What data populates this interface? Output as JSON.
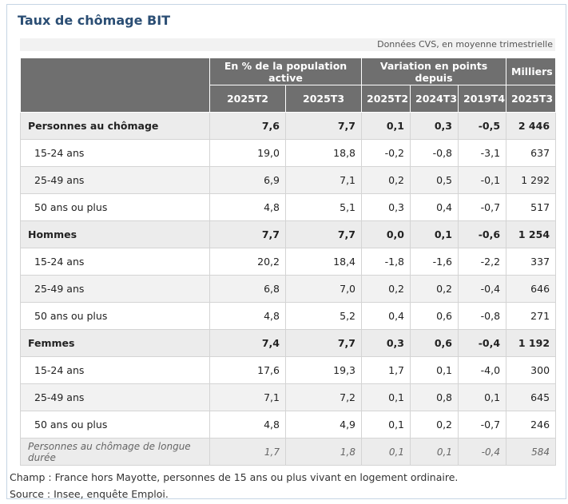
{
  "title": "Taux de chômage BIT",
  "subtitle": "Données CVS, en moyenne trimestrielle",
  "table": {
    "group_headers": [
      "En % de la population active",
      "Variation en points depuis",
      "Milliers"
    ],
    "sub_headers": [
      "2025T2",
      "2025T3",
      "2025T2",
      "2024T3",
      "2019T4",
      "2025T3"
    ],
    "rows": [
      {
        "type": "group",
        "label": "Personnes au chômage",
        "values": [
          "7,6",
          "7,7",
          "0,1",
          "0,3",
          "-0,5",
          "2 446"
        ]
      },
      {
        "type": "sub",
        "label": "15-24 ans",
        "values": [
          "19,0",
          "18,8",
          "-0,2",
          "-0,8",
          "-3,1",
          "637"
        ]
      },
      {
        "type": "sub alt",
        "label": "25-49 ans",
        "values": [
          "6,9",
          "7,1",
          "0,2",
          "0,5",
          "-0,1",
          "1 292"
        ]
      },
      {
        "type": "sub",
        "label": "50 ans ou plus",
        "values": [
          "4,8",
          "5,1",
          "0,3",
          "0,4",
          "-0,7",
          "517"
        ]
      },
      {
        "type": "group",
        "label": "Hommes",
        "values": [
          "7,7",
          "7,7",
          "0,0",
          "0,1",
          "-0,6",
          "1 254"
        ]
      },
      {
        "type": "sub",
        "label": "15-24 ans",
        "values": [
          "20,2",
          "18,4",
          "-1,8",
          "-1,6",
          "-2,2",
          "337"
        ]
      },
      {
        "type": "sub alt",
        "label": "25-49 ans",
        "values": [
          "6,8",
          "7,0",
          "0,2",
          "0,2",
          "-0,4",
          "646"
        ]
      },
      {
        "type": "sub",
        "label": "50 ans ou plus",
        "values": [
          "4,8",
          "5,2",
          "0,4",
          "0,6",
          "-0,8",
          "271"
        ]
      },
      {
        "type": "group",
        "label": "Femmes",
        "values": [
          "7,4",
          "7,7",
          "0,3",
          "0,6",
          "-0,4",
          "1 192"
        ]
      },
      {
        "type": "sub",
        "label": "15-24 ans",
        "values": [
          "17,6",
          "19,3",
          "1,7",
          "0,1",
          "-4,0",
          "300"
        ]
      },
      {
        "type": "sub alt",
        "label": "25-49 ans",
        "values": [
          "7,1",
          "7,2",
          "0,1",
          "0,8",
          "0,1",
          "645"
        ]
      },
      {
        "type": "sub",
        "label": "50 ans ou plus",
        "values": [
          "4,8",
          "4,9",
          "0,1",
          "0,2",
          "-0,7",
          "246"
        ]
      },
      {
        "type": "long",
        "label": "Personnes au chômage de longue durée",
        "values": [
          "1,7",
          "1,8",
          "0,1",
          "0,1",
          "-0,4",
          "584"
        ]
      }
    ]
  },
  "notes": {
    "champ": "Champ : France hors Mayotte, personnes de 15 ans ou plus vivant en logement ordinaire.",
    "source": "Source : Insee, enquête Emploi."
  }
}
